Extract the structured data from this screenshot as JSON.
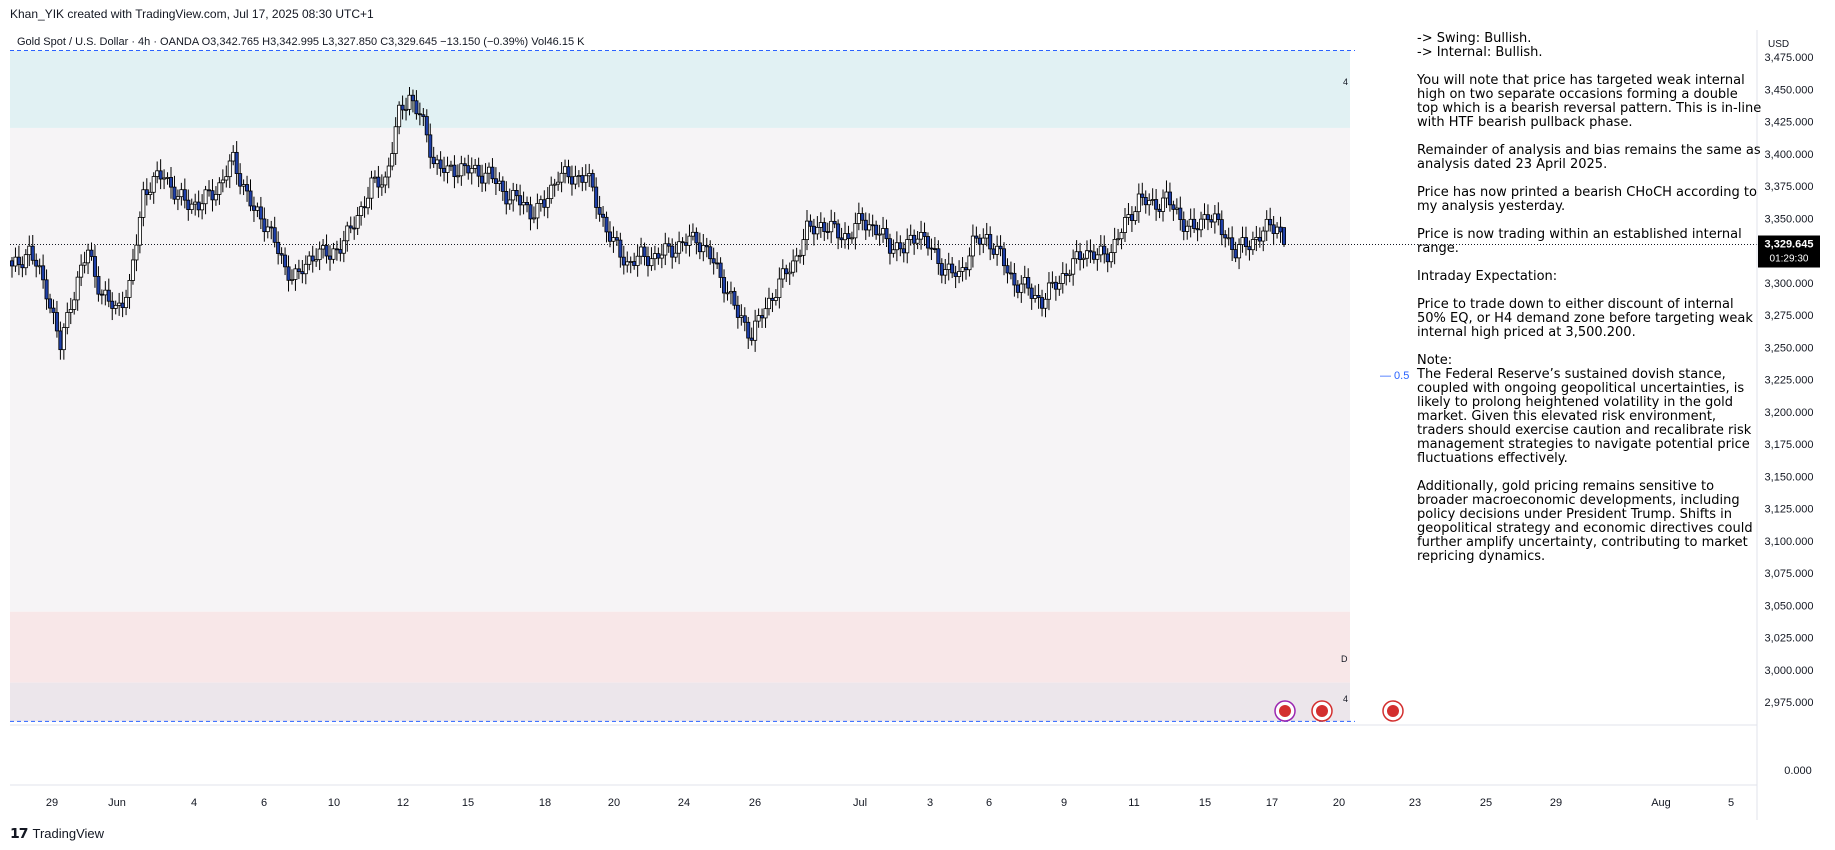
{
  "header": {
    "credit": "Khan_YIK created with TradingView.com, Jul 17, 2025 08:30 UTC+1",
    "legend": "Gold Spot / U.S. Dollar · 4h · OANDA  O3,342.765  H3,342.995  L3,327.850  C3,329.645  −13.150 (−0.39%)  Vol46.15 K"
  },
  "price_scale": {
    "currency": "USD",
    "last_price": "3,329.645",
    "countdown": "01:29:30",
    "lower_pane_label": "0.000"
  },
  "zone_labels": {
    "supply": "4",
    "demand_daily": "D",
    "demand_h4": "4"
  },
  "fib_label": "— 0.5",
  "annotation": {
    "swing": "-> Swing:  Bullish.",
    "internal": "-> Internal:  Bullish.",
    "p1": "You will note that price has targeted weak internal high on two separate occasions forming a double top which is a bearish reversal pattern. This is in-line with HTF bearish pullback phase.",
    "p2": "Remainder of analysis and bias remains the same as analysis dated 23 April 2025.",
    "p3": "Price has now printed a bearish CHoCH according to my analysis yesterday.",
    "p4": "Price is now trading within an established internal range.",
    "p5": "Intraday Expectation:",
    "p6": "Price to trade down to either discount of internal 50% EQ, or H4 demand zone before targeting weak internal high priced at 3,500.200.",
    "p7_title": "Note:",
    "p7": "The Federal Reserve’s sustained dovish stance, coupled with ongoing geopolitical uncertainties, is likely to prolong heightened volatility in the gold market. Given this elevated risk environment, traders should exercise caution and recalibrate risk management strategies to navigate potential price fluctuations effectively.",
    "p8": "Additionally, gold pricing remains sensitive to broader macroeconomic developments, including policy decisions under President Trump. Shifts in geopolitical strategy and economic directives could further amplify uncertainty, contributing to market repricing dynamics."
  },
  "footer": {
    "brand": "TradingView"
  },
  "colors": {
    "candle_up": "#ffffff",
    "candle_down": "#1e3fa8",
    "candle_border": "#000000",
    "supply_zone": "#e1f1f3",
    "demand_zone_daily": "#f8e7e8",
    "demand_zone_h4": "#ece6eb",
    "range_fill": "#f6f4f6",
    "accent_blue": "#2962ff"
  },
  "chart_data": {
    "type": "candlestick",
    "symbol": "Gold Spot / U.S. Dollar",
    "timeframe": "4h",
    "ylim": [
      2950,
      3490
    ],
    "y_ticks": [
      2975,
      3000,
      3025,
      3050,
      3075,
      3100,
      3125,
      3150,
      3175,
      3200,
      3225,
      3250,
      3275,
      3300,
      3325,
      3350,
      3375,
      3400,
      3425,
      3450,
      3475
    ],
    "x_ticks": [
      "29",
      "Jun",
      "4",
      "6",
      "10",
      "12",
      "15",
      "18",
      "20",
      "24",
      "26",
      "Jul",
      "3",
      "6",
      "9",
      "11",
      "15",
      "17",
      "20",
      "23",
      "25",
      "29",
      "Aug",
      "5"
    ],
    "last": {
      "open": 3342.765,
      "high": 3342.995,
      "low": 3327.85,
      "close": 3329.645,
      "change": -13.15,
      "change_pct": -0.39,
      "volume": "46.15 K"
    },
    "zones": [
      {
        "name": "H4 supply",
        "top": 3480,
        "bottom": 3420
      },
      {
        "name": "internal range",
        "top": 3420,
        "bottom": 3045
      },
      {
        "name": "Daily demand",
        "top": 3045,
        "bottom": 2990
      },
      {
        "name": "H4 demand",
        "top": 2990,
        "bottom": 2960
      }
    ],
    "equilibrium_50": 3226,
    "anchors": [
      [
        0,
        3310
      ],
      [
        5,
        3325
      ],
      [
        10,
        3295
      ],
      [
        14,
        3250
      ],
      [
        17,
        3285
      ],
      [
        22,
        3325
      ],
      [
        26,
        3290
      ],
      [
        30,
        3280
      ],
      [
        34,
        3295
      ],
      [
        38,
        3370
      ],
      [
        44,
        3385
      ],
      [
        48,
        3365
      ],
      [
        54,
        3360
      ],
      [
        60,
        3375
      ],
      [
        64,
        3395
      ],
      [
        70,
        3355
      ],
      [
        74,
        3345
      ],
      [
        79,
        3310
      ],
      [
        83,
        3305
      ],
      [
        88,
        3325
      ],
      [
        92,
        3320
      ],
      [
        98,
        3340
      ],
      [
        104,
        3375
      ],
      [
        108,
        3380
      ],
      [
        112,
        3430
      ],
      [
        115,
        3445
      ],
      [
        118,
        3430
      ],
      [
        122,
        3395
      ],
      [
        126,
        3385
      ],
      [
        130,
        3390
      ],
      [
        134,
        3385
      ],
      [
        138,
        3385
      ],
      [
        142,
        3370
      ],
      [
        146,
        3365
      ],
      [
        150,
        3355
      ],
      [
        154,
        3360
      ],
      [
        158,
        3385
      ],
      [
        162,
        3380
      ],
      [
        166,
        3385
      ],
      [
        170,
        3355
      ],
      [
        174,
        3330
      ],
      [
        178,
        3315
      ],
      [
        182,
        3320
      ],
      [
        186,
        3320
      ],
      [
        190,
        3325
      ],
      [
        194,
        3330
      ],
      [
        198,
        3335
      ],
      [
        202,
        3320
      ],
      [
        206,
        3300
      ],
      [
        210,
        3275
      ],
      [
        214,
        3260
      ],
      [
        218,
        3280
      ],
      [
        222,
        3300
      ],
      [
        226,
        3315
      ],
      [
        230,
        3340
      ],
      [
        234,
        3345
      ],
      [
        238,
        3340
      ],
      [
        242,
        3335
      ],
      [
        246,
        3350
      ],
      [
        250,
        3340
      ],
      [
        254,
        3330
      ],
      [
        258,
        3325
      ],
      [
        262,
        3340
      ],
      [
        266,
        3325
      ],
      [
        270,
        3310
      ],
      [
        274,
        3305
      ],
      [
        278,
        3330
      ],
      [
        282,
        3335
      ],
      [
        286,
        3320
      ],
      [
        290,
        3300
      ],
      [
        294,
        3295
      ],
      [
        298,
        3285
      ],
      [
        302,
        3300
      ],
      [
        306,
        3310
      ],
      [
        310,
        3325
      ],
      [
        314,
        3320
      ],
      [
        318,
        3325
      ],
      [
        322,
        3345
      ],
      [
        326,
        3365
      ],
      [
        330,
        3360
      ],
      [
        334,
        3365
      ],
      [
        338,
        3350
      ],
      [
        342,
        3340
      ],
      [
        346,
        3355
      ],
      [
        350,
        3340
      ],
      [
        354,
        3325
      ],
      [
        358,
        3330
      ],
      [
        362,
        3340
      ],
      [
        366,
        3345
      ],
      [
        368,
        3329.645
      ]
    ]
  }
}
